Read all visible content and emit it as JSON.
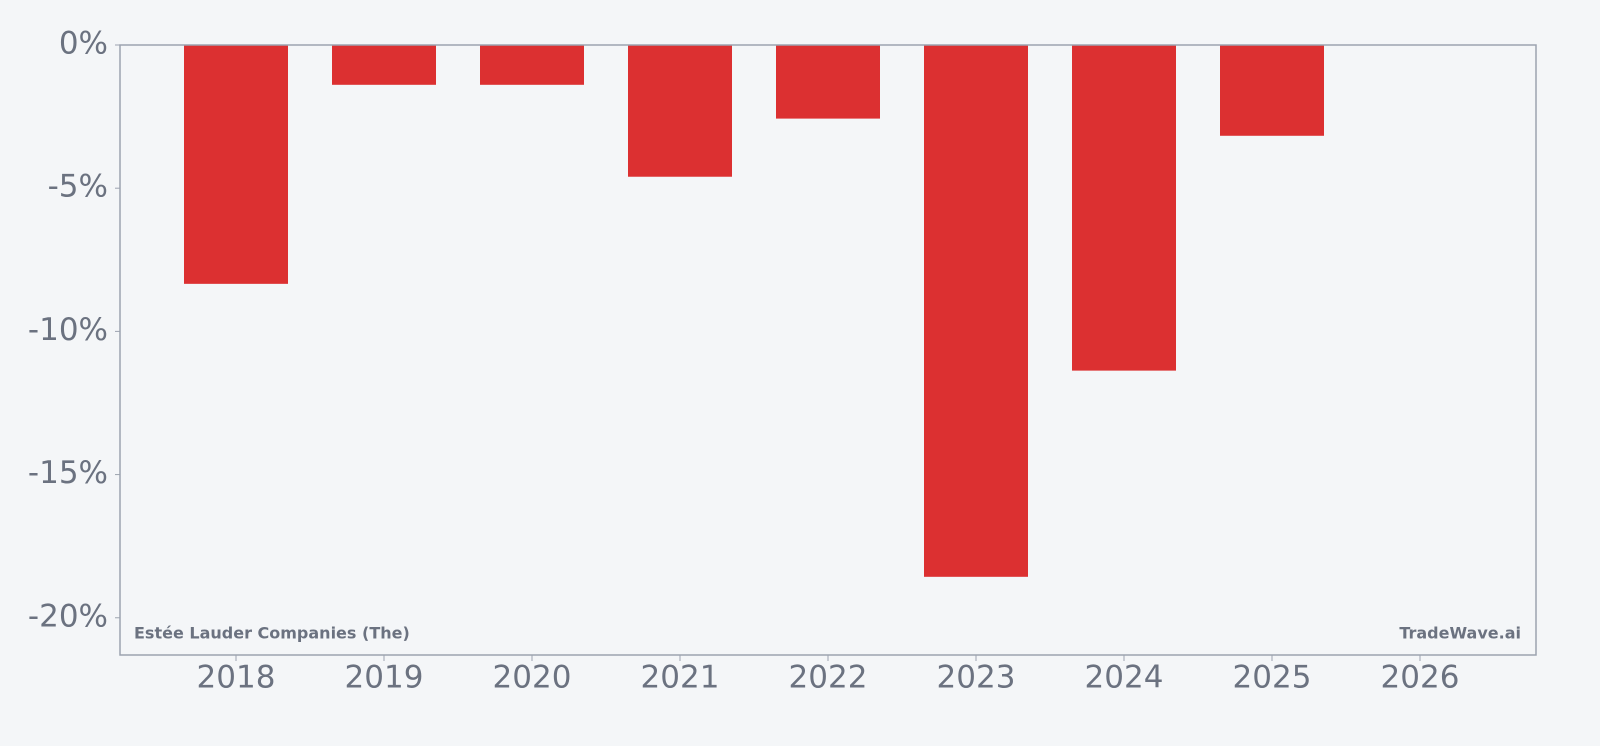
{
  "chart_data": {
    "type": "bar",
    "categories": [
      "2018",
      "2019",
      "2020",
      "2021",
      "2022",
      "2023",
      "2024",
      "2025",
      "2026"
    ],
    "values": [
      -8.34,
      -1.39,
      -1.39,
      -4.6,
      -2.57,
      -18.57,
      -11.37,
      -3.17,
      null
    ],
    "color": "#dc3031",
    "ylim": [
      -21.3,
      0
    ],
    "yticks": [
      {
        "value": 0,
        "label": "0%"
      },
      {
        "value": -5,
        "label": "-5%"
      },
      {
        "value": -10,
        "label": "-10%"
      },
      {
        "value": -15,
        "label": "-15%"
      },
      {
        "value": -20,
        "label": "-20%"
      }
    ],
    "grid": false,
    "annotations": [
      "Estée Lauder Companies (The)",
      "TradeWave.ai"
    ]
  }
}
